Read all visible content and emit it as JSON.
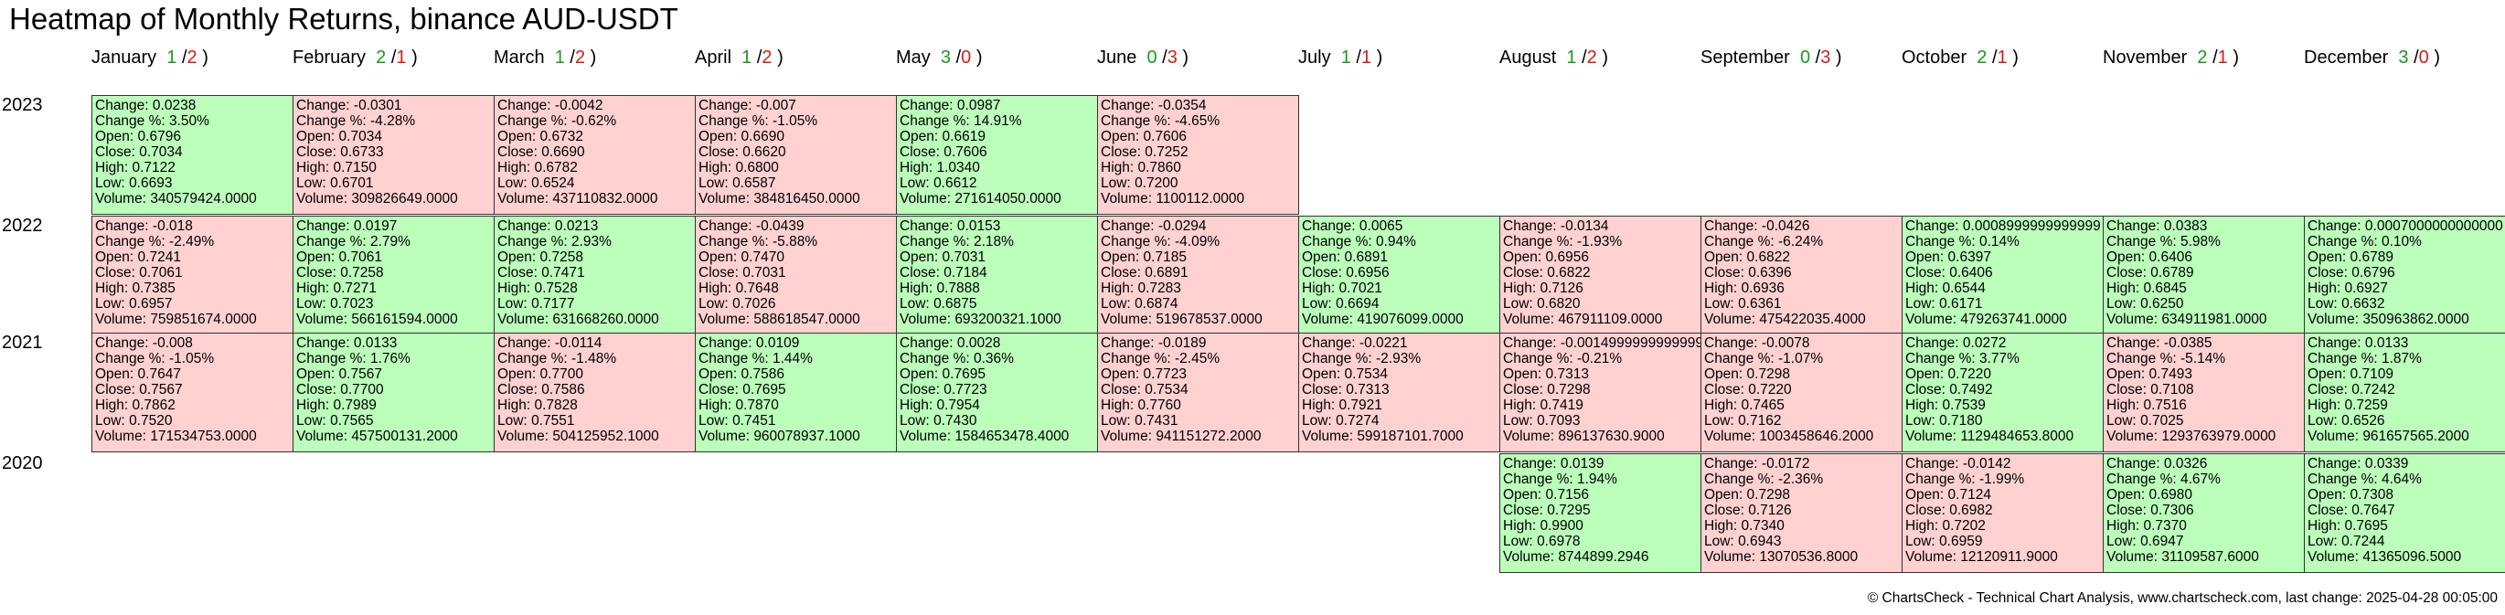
{
  "chart_data": {
    "type": "heatmap",
    "title": "Heatmap of Monthly Returns, binance AUD-USDT",
    "footer": "© ChartsCheck - Technical Chart Analysis, www.chartscheck.com, last change: 2025-04-28 00:05:00",
    "colors": {
      "positive": "#bbffbb",
      "negative": "#ffd1d1",
      "up_count": "#1a9a1a",
      "down_count": "#d81b1b"
    },
    "field_labels": {
      "change": "Change: ",
      "change_pct": "Change %: ",
      "open": "Open: ",
      "close": "Close: ",
      "high": "High: ",
      "low": "Low: ",
      "volume": "Volume: "
    },
    "months": [
      {
        "name": "January",
        "up": "1",
        "down": "2"
      },
      {
        "name": "February",
        "up": "2",
        "down": "1"
      },
      {
        "name": "March",
        "up": "1",
        "down": "2"
      },
      {
        "name": "April",
        "up": "1",
        "down": "2"
      },
      {
        "name": "May",
        "up": "3",
        "down": "0"
      },
      {
        "name": "June",
        "up": "0",
        "down": "3"
      },
      {
        "name": "July",
        "up": "1",
        "down": "1"
      },
      {
        "name": "August",
        "up": "1",
        "down": "2"
      },
      {
        "name": "September",
        "up": "0",
        "down": "3"
      },
      {
        "name": "October",
        "up": "2",
        "down": "1"
      },
      {
        "name": "November",
        "up": "2",
        "down": "1"
      },
      {
        "name": "December",
        "up": "3",
        "down": "0"
      }
    ],
    "years": [
      {
        "year": "2023",
        "cells": [
          {
            "change": "0.0238",
            "change_pct": "3.50%",
            "open": "0.6796",
            "close": "0.7034",
            "high": "0.7122",
            "low": "0.6693",
            "volume": "340579424.0000"
          },
          {
            "change": "-0.0301",
            "change_pct": "-4.28%",
            "open": "0.7034",
            "close": "0.6733",
            "high": "0.7150",
            "low": "0.6701",
            "volume": "309826649.0000"
          },
          {
            "change": "-0.0042",
            "change_pct": "-0.62%",
            "open": "0.6732",
            "close": "0.6690",
            "high": "0.6782",
            "low": "0.6524",
            "volume": "437110832.0000"
          },
          {
            "change": "-0.007",
            "change_pct": "-1.05%",
            "open": "0.6690",
            "close": "0.6620",
            "high": "0.6800",
            "low": "0.6587",
            "volume": "384816450.0000"
          },
          {
            "change": "0.0987",
            "change_pct": "14.91%",
            "open": "0.6619",
            "close": "0.7606",
            "high": "1.0340",
            "low": "0.6612",
            "volume": "271614050.0000"
          },
          {
            "change": "-0.0354",
            "change_pct": "-4.65%",
            "open": "0.7606",
            "close": "0.7252",
            "high": "0.7860",
            "low": "0.7200",
            "volume": "1100112.0000"
          },
          null,
          null,
          null,
          null,
          null,
          null
        ]
      },
      {
        "year": "2022",
        "cells": [
          {
            "change": "-0.018",
            "change_pct": "-2.49%",
            "open": "0.7241",
            "close": "0.7061",
            "high": "0.7385",
            "low": "0.6957",
            "volume": "759851674.0000"
          },
          {
            "change": "0.0197",
            "change_pct": "2.79%",
            "open": "0.7061",
            "close": "0.7258",
            "high": "0.7271",
            "low": "0.7023",
            "volume": "566161594.0000"
          },
          {
            "change": "0.0213",
            "change_pct": "2.93%",
            "open": "0.7258",
            "close": "0.7471",
            "high": "0.7528",
            "low": "0.7177",
            "volume": "631668260.0000"
          },
          {
            "change": "-0.0439",
            "change_pct": "-5.88%",
            "open": "0.7470",
            "close": "0.7031",
            "high": "0.7648",
            "low": "0.7026",
            "volume": "588618547.0000"
          },
          {
            "change": "0.0153",
            "change_pct": "2.18%",
            "open": "0.7031",
            "close": "0.7184",
            "high": "0.7888",
            "low": "0.6875",
            "volume": "693200321.1000"
          },
          {
            "change": "-0.0294",
            "change_pct": "-4.09%",
            "open": "0.7185",
            "close": "0.6891",
            "high": "0.7283",
            "low": "0.6874",
            "volume": "519678537.0000"
          },
          {
            "change": "0.0065",
            "change_pct": "0.94%",
            "open": "0.6891",
            "close": "0.6956",
            "high": "0.7021",
            "low": "0.6694",
            "volume": "419076099.0000"
          },
          {
            "change": "-0.0134",
            "change_pct": "-1.93%",
            "open": "0.6956",
            "close": "0.6822",
            "high": "0.7126",
            "low": "0.6820",
            "volume": "467911109.0000"
          },
          {
            "change": "-0.0426",
            "change_pct": "-6.24%",
            "open": "0.6822",
            "close": "0.6396",
            "high": "0.6936",
            "low": "0.6361",
            "volume": "475422035.4000"
          },
          {
            "change": "0.0008999999999999",
            "change_pct": "0.14%",
            "open": "0.6397",
            "close": "0.6406",
            "high": "0.6544",
            "low": "0.6171",
            "volume": "479263741.0000"
          },
          {
            "change": "0.0383",
            "change_pct": "5.98%",
            "open": "0.6406",
            "close": "0.6789",
            "high": "0.6845",
            "low": "0.6250",
            "volume": "634911981.0000"
          },
          {
            "change": "0.0007000000000000",
            "change_pct": "0.10%",
            "open": "0.6789",
            "close": "0.6796",
            "high": "0.6927",
            "low": "0.6632",
            "volume": "350963862.0000"
          }
        ]
      },
      {
        "year": "2021",
        "cells": [
          {
            "change": "-0.008",
            "change_pct": "-1.05%",
            "open": "0.7647",
            "close": "0.7567",
            "high": "0.7862",
            "low": "0.7520",
            "volume": "171534753.0000"
          },
          {
            "change": "0.0133",
            "change_pct": "1.76%",
            "open": "0.7567",
            "close": "0.7700",
            "high": "0.7989",
            "low": "0.7565",
            "volume": "457500131.2000"
          },
          {
            "change": "-0.0114",
            "change_pct": "-1.48%",
            "open": "0.7700",
            "close": "0.7586",
            "high": "0.7828",
            "low": "0.7551",
            "volume": "504125952.1000"
          },
          {
            "change": "0.0109",
            "change_pct": "1.44%",
            "open": "0.7586",
            "close": "0.7695",
            "high": "0.7870",
            "low": "0.7451",
            "volume": "960078937.1000"
          },
          {
            "change": "0.0028",
            "change_pct": "0.36%",
            "open": "0.7695",
            "close": "0.7723",
            "high": "0.7954",
            "low": "0.7430",
            "volume": "1584653478.4000"
          },
          {
            "change": "-0.0189",
            "change_pct": "-2.45%",
            "open": "0.7723",
            "close": "0.7534",
            "high": "0.7760",
            "low": "0.7431",
            "volume": "941151272.2000"
          },
          {
            "change": "-0.0221",
            "change_pct": "-2.93%",
            "open": "0.7534",
            "close": "0.7313",
            "high": "0.7921",
            "low": "0.7274",
            "volume": "599187101.7000"
          },
          {
            "change": "-0.0014999999999999",
            "change_pct": "-0.21%",
            "open": "0.7313",
            "close": "0.7298",
            "high": "0.7419",
            "low": "0.7093",
            "volume": "896137630.9000"
          },
          {
            "change": "-0.0078",
            "change_pct": "-1.07%",
            "open": "0.7298",
            "close": "0.7220",
            "high": "0.7465",
            "low": "0.7162",
            "volume": "1003458646.2000"
          },
          {
            "change": "0.0272",
            "change_pct": "3.77%",
            "open": "0.7220",
            "close": "0.7492",
            "high": "0.7539",
            "low": "0.7180",
            "volume": "1129484653.8000"
          },
          {
            "change": "-0.0385",
            "change_pct": "-5.14%",
            "open": "0.7493",
            "close": "0.7108",
            "high": "0.7516",
            "low": "0.7025",
            "volume": "1293763979.0000"
          },
          {
            "change": "0.0133",
            "change_pct": "1.87%",
            "open": "0.7109",
            "close": "0.7242",
            "high": "0.7259",
            "low": "0.6526",
            "volume": "961657565.2000"
          }
        ]
      },
      {
        "year": "2020",
        "cells": [
          null,
          null,
          null,
          null,
          null,
          null,
          null,
          {
            "change": "0.0139",
            "change_pct": "1.94%",
            "open": "0.7156",
            "close": "0.7295",
            "high": "0.9900",
            "low": "0.6978",
            "volume": "8744899.2946"
          },
          {
            "change": "-0.0172",
            "change_pct": "-2.36%",
            "open": "0.7298",
            "close": "0.7126",
            "high": "0.7340",
            "low": "0.6943",
            "volume": "13070536.8000"
          },
          {
            "change": "-0.0142",
            "change_pct": "-1.99%",
            "open": "0.7124",
            "close": "0.6982",
            "high": "0.7202",
            "low": "0.6959",
            "volume": "12120911.9000"
          },
          {
            "change": "0.0326",
            "change_pct": "4.67%",
            "open": "0.6980",
            "close": "0.7306",
            "high": "0.7370",
            "low": "0.6947",
            "volume": "31109587.6000"
          },
          {
            "change": "0.0339",
            "change_pct": "4.64%",
            "open": "0.7308",
            "close": "0.7647",
            "high": "0.7695",
            "low": "0.7244",
            "volume": "41365096.5000"
          }
        ]
      }
    ]
  }
}
